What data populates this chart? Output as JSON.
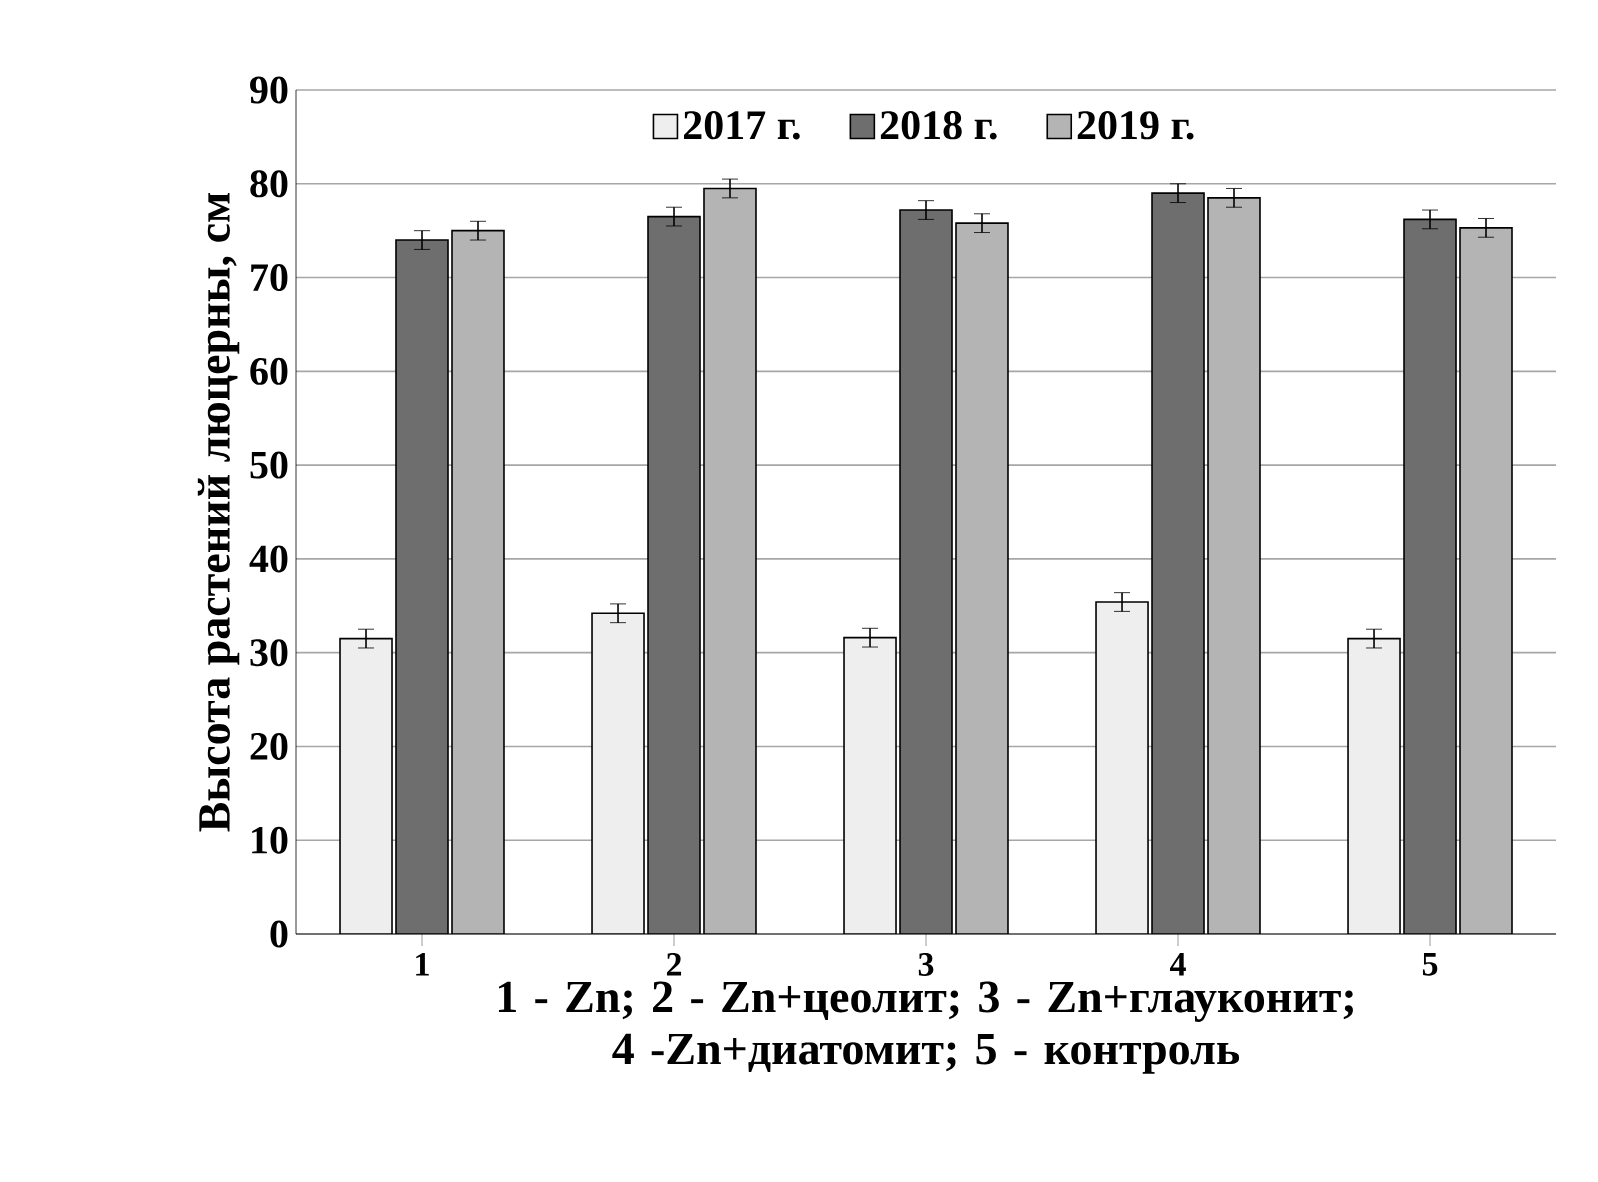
{
  "chart_data": {
    "type": "bar",
    "xlabel": "1 - Zn; 2 - Zn+цеолит; 3 - Zn+глауконит; 4 -Zn+диатомит; 5 - контроль",
    "ylabel": "Высота растений люцерны, см",
    "categories": [
      "1",
      "2",
      "3",
      "4",
      "5"
    ],
    "series": [
      {
        "name": "2017 г.",
        "color": "#eeeeee",
        "values": [
          31.5,
          34.2,
          31.6,
          35.4,
          31.5
        ],
        "errors": [
          1,
          1,
          1,
          1,
          1
        ]
      },
      {
        "name": "2018 г.",
        "color": "#6e6e6e",
        "values": [
          74,
          76.5,
          77.2,
          79,
          76.2
        ],
        "errors": [
          1,
          1,
          1,
          1,
          1
        ]
      },
      {
        "name": "2019 г.",
        "color": "#b4b4b4",
        "values": [
          75,
          79.5,
          75.8,
          78.5,
          75.3
        ],
        "errors": [
          1,
          1,
          1,
          1,
          1
        ]
      }
    ],
    "ylim": [
      0,
      90
    ],
    "yticks": [
      0,
      10,
      20,
      30,
      40,
      50,
      60,
      70,
      80,
      90
    ],
    "grid": "y",
    "legend": "top"
  }
}
